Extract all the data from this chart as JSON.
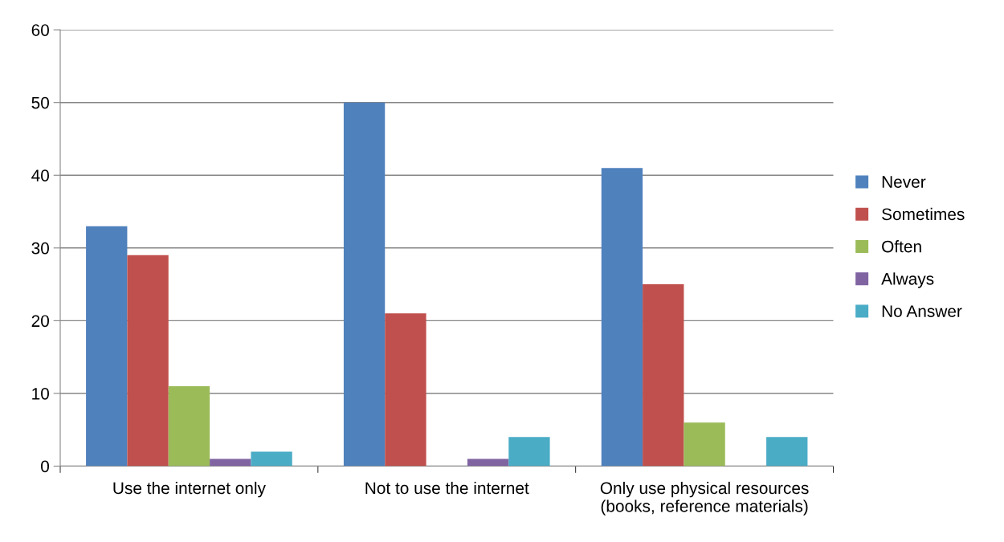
{
  "chart_data": {
    "type": "bar",
    "categories": [
      "Use the internet only",
      "Not to use the internet",
      "Only use physical resources\n(books, reference materials)"
    ],
    "series": [
      {
        "name": "Never",
        "color": "#4f81bd",
        "values": [
          33,
          50,
          41
        ]
      },
      {
        "name": "Sometimes",
        "color": "#c0504d",
        "values": [
          29,
          21,
          25
        ]
      },
      {
        "name": "Often",
        "color": "#9bbb59",
        "values": [
          11,
          0,
          6
        ]
      },
      {
        "name": "Always",
        "color": "#8064a2",
        "values": [
          1,
          1,
          0
        ]
      },
      {
        "name": "No Answer",
        "color": "#4bacc6",
        "values": [
          2,
          4,
          4
        ]
      }
    ],
    "ylim": [
      0,
      60
    ],
    "yticks": [
      0,
      10,
      20,
      30,
      40,
      50,
      60
    ],
    "grid": "y",
    "legend": "right"
  }
}
